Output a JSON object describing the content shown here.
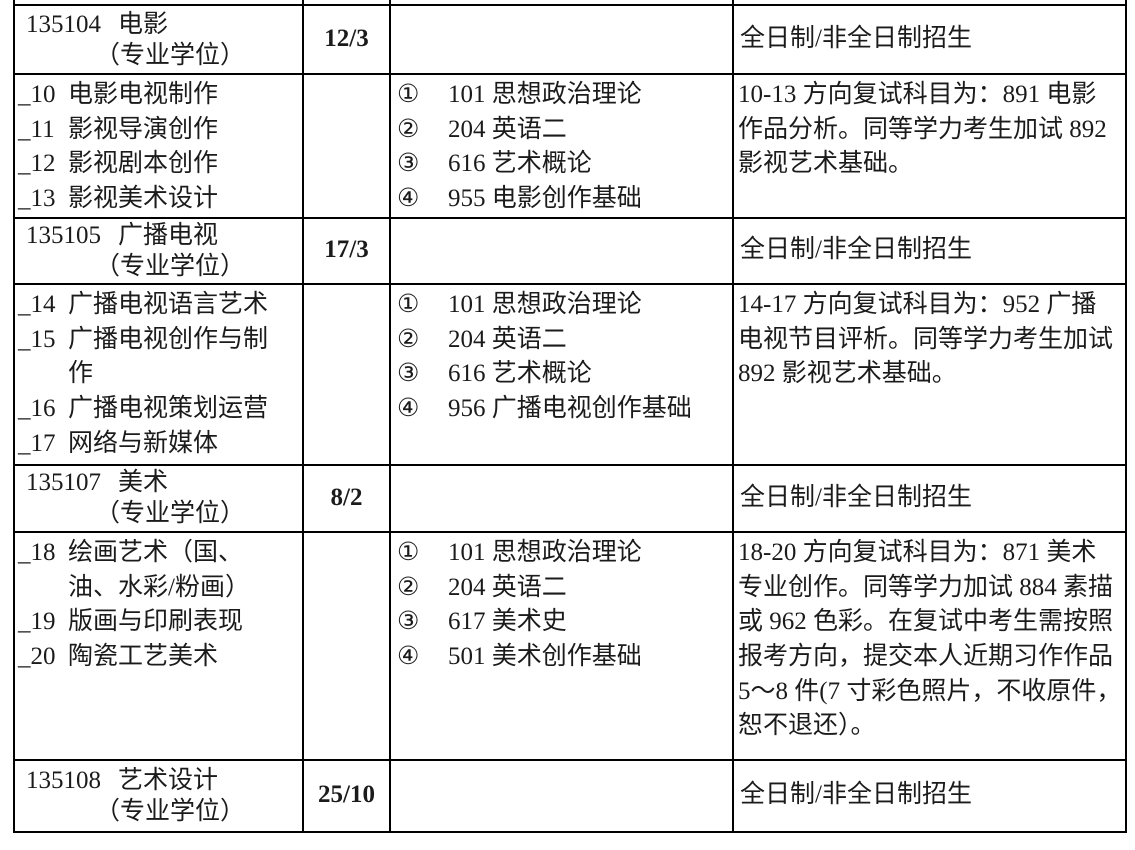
{
  "page": {
    "background_color": "#ffffff",
    "text_color": "#1b1b1b",
    "border_color": "#000000",
    "document_type": "admissions-catalog-table"
  },
  "table": {
    "rows": [
      {
        "type": "spacer"
      },
      {
        "type": "program",
        "code": "135104",
        "name": "电影",
        "degree": "（专业学位）",
        "quota": "12/3",
        "note": "全日制/非全日制招生"
      },
      {
        "type": "detail",
        "directions": [
          {
            "code": "_10",
            "lines": [
              "电影电视制作"
            ]
          },
          {
            "code": "_11",
            "lines": [
              "影视导演创作"
            ]
          },
          {
            "code": "_12",
            "lines": [
              "影视剧本创作"
            ]
          },
          {
            "code": "_13",
            "lines": [
              "影视美术设计"
            ]
          }
        ],
        "subjects": [
          {
            "num": "①",
            "text": "101 思想政治理论"
          },
          {
            "num": "②",
            "text": "204 英语二"
          },
          {
            "num": "③",
            "text": "616 艺术概论"
          },
          {
            "num": "④",
            "text": "955 电影创作基础"
          }
        ],
        "remark_lines": [
          "10-13 方向复试科目为：891 电影",
          "作品分析。同等学力考生加试 892",
          "影视艺术基础。"
        ]
      },
      {
        "type": "program",
        "code": "135105",
        "name": "广播电视",
        "degree": "（专业学位）",
        "quota": "17/3",
        "note": "全日制/非全日制招生"
      },
      {
        "type": "detail",
        "directions": [
          {
            "code": "_14",
            "lines": [
              "广播电视语言艺术"
            ]
          },
          {
            "code": "_15",
            "lines": [
              "广播电视创作与制",
              "作"
            ]
          },
          {
            "code": "_16",
            "lines": [
              "广播电视策划运营"
            ]
          },
          {
            "code": "_17",
            "lines": [
              "网络与新媒体"
            ]
          }
        ],
        "subjects": [
          {
            "num": "①",
            "text": "101 思想政治理论"
          },
          {
            "num": "②",
            "text": "204 英语二"
          },
          {
            "num": "③",
            "text": "616 艺术概论"
          },
          {
            "num": "④",
            "text": "956 广播电视创作基础"
          }
        ],
        "remark_lines": [
          "14-17 方向复试科目为：952 广播",
          "电视节目评析。同等学力考生加试",
          "892 影视艺术基础。"
        ]
      },
      {
        "type": "program",
        "code": "135107",
        "name": "美术",
        "degree": "（专业学位）",
        "quota": "8/2",
        "note": "全日制/非全日制招生"
      },
      {
        "type": "detail",
        "directions": [
          {
            "code": "_18",
            "lines": [
              "绘画艺术（国、",
              "油、水彩/粉画）"
            ]
          },
          {
            "code": "_19",
            "lines": [
              "版画与印刷表现"
            ]
          },
          {
            "code": "_20",
            "lines": [
              "陶瓷工艺美术"
            ]
          }
        ],
        "subjects": [
          {
            "num": "①",
            "text": "101 思想政治理论"
          },
          {
            "num": "②",
            "text": "204 英语二"
          },
          {
            "num": "③",
            "text": "617 美术史"
          },
          {
            "num": "④",
            "text": "501 美术创作基础"
          }
        ],
        "remark_lines": [
          "18-20 方向复试科目为：871 美术",
          "专业创作。同等学力加试 884 素描",
          "或 962 色彩。在复试中考生需按照",
          "报考方向，提交本人近期习作作品",
          "5～8 件(7 寸彩色照片，不收原件，",
          "恕不退还）。"
        ]
      },
      {
        "type": "program",
        "code": "135108",
        "name": "艺术设计",
        "degree": "（专业学位）",
        "quota": "25/10",
        "note": "全日制/非全日制招生"
      }
    ]
  }
}
